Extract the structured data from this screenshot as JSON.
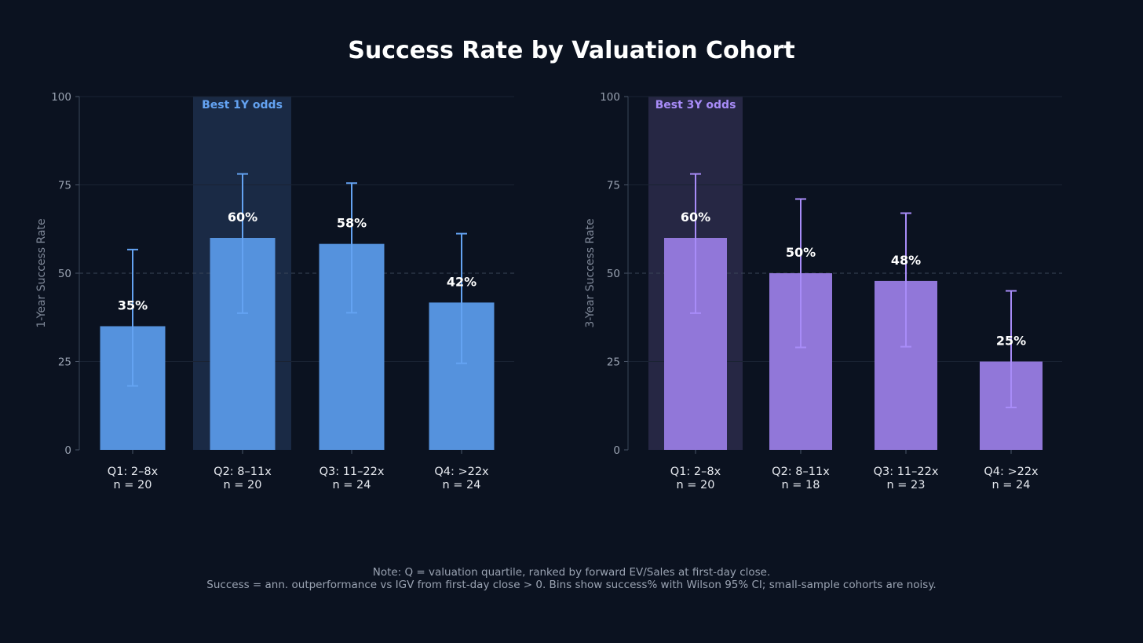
{
  "colors": {
    "background": "#0b1220",
    "blue_bar": "#5592dd",
    "blue_err": "#64a3f2",
    "blue_highlight": "#1a2a45",
    "purple_bar": "#9177d9",
    "purple_err": "#a88cf8",
    "purple_highlight": "#262744",
    "grid": "#1a2333",
    "ref_line": "#3a4559",
    "tick_text": "#9aa3b2",
    "white": "#ffffff"
  },
  "title": "Success Rate by Valuation Cohort",
  "chart_data": [
    {
      "type": "bar",
      "ylabel": "1-Year Success Rate",
      "ylim": [
        0,
        100
      ],
      "yticks": [
        "0",
        "25",
        "50",
        "75",
        "100"
      ],
      "reference_line": 50,
      "categories": [
        "Q1: 2–8x",
        "Q2: 8–11x",
        "Q3: 11–22x",
        "Q4: >22x"
      ],
      "n_labels": [
        "n = 20",
        "n = 20",
        "n = 24",
        "n = 24"
      ],
      "values": [
        35,
        60,
        58.3,
        41.7
      ],
      "value_labels": [
        "35%",
        "60%",
        "58%",
        "42%"
      ],
      "ci_low": [
        18.1,
        38.7,
        38.8,
        24.5
      ],
      "ci_high": [
        56.7,
        78.1,
        75.5,
        61.2
      ],
      "highlight_index": 1,
      "highlight_label": "Best 1Y odds",
      "accent": "blue"
    },
    {
      "type": "bar",
      "ylabel": "3-Year Success Rate",
      "ylim": [
        0,
        100
      ],
      "yticks": [
        "0",
        "25",
        "50",
        "75",
        "100"
      ],
      "reference_line": 50,
      "categories": [
        "Q1: 2–8x",
        "Q2: 8–11x",
        "Q3: 11–22x",
        "Q4: >22x"
      ],
      "n_labels": [
        "n = 20",
        "n = 18",
        "n = 23",
        "n = 24"
      ],
      "values": [
        60,
        50,
        47.8,
        25
      ],
      "value_labels": [
        "60%",
        "50%",
        "48%",
        "25%"
      ],
      "ci_low": [
        38.7,
        29.0,
        29.2,
        12.0
      ],
      "ci_high": [
        78.1,
        71.0,
        67.0,
        45.0
      ],
      "highlight_index": 0,
      "highlight_label": "Best 3Y odds",
      "accent": "purple"
    }
  ],
  "footnote": {
    "line1": "Note: Q = valuation quartile, ranked by forward EV/Sales at first-day close.",
    "line2": "Success = ann. outperformance vs IGV from first-day close > 0. Bins show success% with Wilson 95% CI; small-sample cohorts are noisy."
  }
}
